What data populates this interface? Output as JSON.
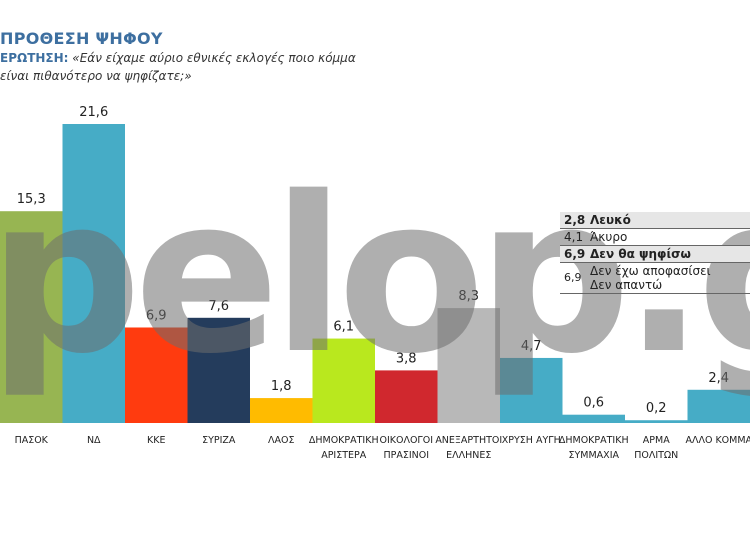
{
  "header": {
    "title": "ΠΡΟΘΕΣΗ ΨΗΦΟΥ",
    "question_label": "ΕΡΩΤΗΣΗ:",
    "question": "«Εάν είχαμε αύριο εθνικές εκλογές ποιο κόμμα είναι πιθανότερο να ψηφίζατε;»"
  },
  "watermark": "pelop.gr",
  "chart_data": {
    "type": "bar",
    "categories": [
      "ΠΑΣΟΚ",
      "ΝΔ",
      "ΚΚΕ",
      "ΣΥΡΙΖΑ",
      "ΛΑΟΣ",
      "ΔΗΜΟΚΡΑΤΙΚΗ ΑΡΙΣΤΕΡΑ",
      "ΟΙΚΟΛΟΓΟΙ ΠΡΑΣΙΝΟΙ",
      "ΑΝΕΞΑΡΤΗΤΟΙ ΕΛΛΗΝΕΣ",
      "ΧΡΥΣΗ ΑΥΓΗ",
      "ΔΗΜΟΚΡΑΤΙΚΗ ΣΥΜΜΑΧΙΑ",
      "ΑΡΜΑ ΠΟΛΙΤΩΝ",
      "ΑΛΛΟ ΚΟΜΜΑ"
    ],
    "values": [
      15.3,
      21.6,
      6.9,
      7.6,
      1.8,
      6.1,
      3.8,
      8.3,
      4.7,
      0.6,
      0.2,
      2.4
    ],
    "value_labels": [
      "15,3",
      "21,6",
      "6,9",
      "7,6",
      "1,8",
      "6,1",
      "3,8",
      "8,3",
      "4,7",
      "0,6",
      "0,2",
      "2,4"
    ],
    "colors": [
      "#97b552",
      "#46acc6",
      "#ff3b0f",
      "#243c5c",
      "#ffbb00",
      "#b9e81e",
      "#d0282e",
      "#b8b8b8",
      "#46acc6",
      "#46acc6",
      "#46acc6",
      "#46acc6"
    ],
    "ylim": [
      0,
      22
    ],
    "grid": false
  },
  "legend": [
    {
      "value": "2,8",
      "label": "Λευκό",
      "highlight": true
    },
    {
      "value": "4,1",
      "label": "Άκυρο",
      "highlight": false
    },
    {
      "value": "6,9",
      "label": "Δεν θα ψηφίσω",
      "highlight": true
    },
    {
      "value": "6,9",
      "label": "Δεν έχω αποφασίσει",
      "label2": "Δεν απαντώ",
      "highlight": false
    }
  ]
}
